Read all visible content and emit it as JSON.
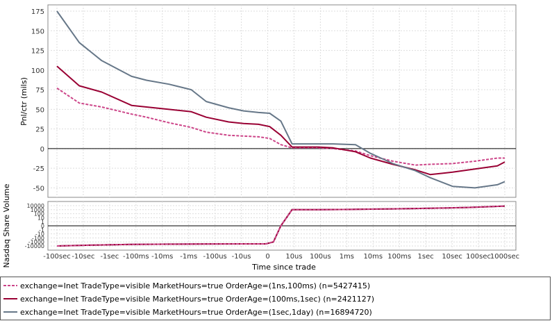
{
  "chart_data": [
    {
      "type": "line",
      "ylabel": "Pnl/ctr (mils)",
      "xlabel": "",
      "ylim": [
        -62,
        183
      ],
      "yticks": [
        175,
        150,
        125,
        100,
        75,
        50,
        25,
        0,
        -25,
        -50
      ],
      "grid": true,
      "x_positions": [
        -3.0,
        -2.7,
        -2.4,
        -2.0,
        -1.8,
        -1.5,
        -1.2,
        -1.0,
        -0.7,
        -0.5,
        -0.3,
        -0.15,
        0.0,
        0.15,
        0.3,
        0.5,
        0.7,
        1.0,
        1.2,
        1.5,
        1.8,
        2.0,
        2.3,
        2.6,
        2.9,
        3.0
      ],
      "series": [
        {
          "name": "exchange=Inet TradeType=visible MarketHours=true OrderAge=(1ns,100ms) (n=5427415)",
          "color": "#cc4488",
          "dash": true,
          "values": [
            77,
            58,
            53,
            44,
            40,
            33,
            27,
            21,
            17,
            16,
            15,
            13,
            5,
            1,
            1,
            1,
            0,
            -3,
            -9,
            -16,
            -21,
            -20,
            -19,
            -16,
            -12,
            -12
          ]
        },
        {
          "name": "exchange=Inet TradeType=visible MarketHours=true OrderAge=(100ms,1sec) (n=2421127)",
          "color": "#990033",
          "dash": false,
          "values": [
            105,
            80,
            72,
            55,
            53,
            50,
            47,
            40,
            34,
            32,
            31,
            28,
            17,
            2,
            2,
            2,
            1,
            -4,
            -12,
            -20,
            -27,
            -33,
            -30,
            -26,
            -22,
            -17
          ]
        },
        {
          "name": "exchange=Inet TradeType=visible MarketHours=true OrderAge=(1sec,1day) (n=16894720)",
          "color": "#667788",
          "dash": false,
          "values": [
            175,
            135,
            112,
            92,
            87,
            82,
            75,
            60,
            52,
            48,
            46,
            45,
            35,
            6,
            6,
            6,
            6,
            5,
            -6,
            -19,
            -28,
            -37,
            -48,
            -50,
            -46,
            -42
          ]
        }
      ]
    },
    {
      "type": "line",
      "ylabel": "Nasdaq Share Volume",
      "xlabel": "Time since trade",
      "yticks": [
        "10000",
        "1000",
        "100",
        "10",
        "1",
        "0",
        "-1",
        "-10",
        "-100",
        "-1000",
        "-10000"
      ],
      "xticks": [
        "-100sec",
        "-10sec",
        "-1sec",
        "-100ms",
        "-10ms",
        "-1ms",
        "-100us",
        "-10us",
        "0",
        "10us",
        "100us",
        "1ms",
        "10ms",
        "100ms",
        "1sec",
        "10sec",
        "100sec",
        "1000sec"
      ],
      "grid": true,
      "x_positions": [
        -3.0,
        -2.5,
        -2.0,
        -1.5,
        -1.0,
        -0.5,
        -0.2,
        -0.1,
        0.0,
        0.15,
        0.5,
        1.0,
        1.5,
        2.0,
        2.5,
        3.0
      ],
      "series_values": [
        -10000,
        -6000,
        -4000,
        -3500,
        -3200,
        -3000,
        -3000,
        -1000,
        0,
        1000,
        1000,
        1200,
        1600,
        2200,
        3500,
        8000
      ]
    }
  ]
}
